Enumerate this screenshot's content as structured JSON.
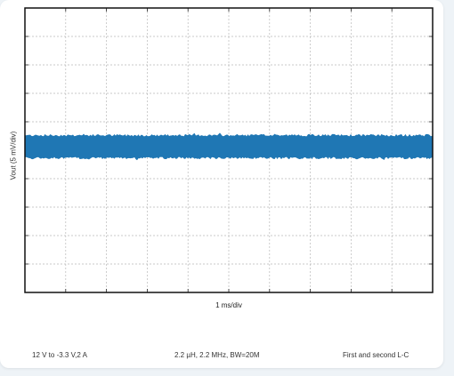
{
  "chart_data": {
    "type": "line",
    "title": "",
    "xlabel": "1 ms/div",
    "ylabel": "Vout (5 mV/div)",
    "x_divisions": 10,
    "y_divisions": 10,
    "xlim": [
      0,
      10
    ],
    "ylim": [
      -5,
      5
    ],
    "grid": true,
    "legend": "none",
    "series": [
      {
        "color": "#1f77b4",
        "mean": 0.12,
        "band": [
          -0.3,
          0.55
        ],
        "description_units": "divisions"
      }
    ]
  },
  "captions": {
    "left": "12 V to -3.3 V,2 A",
    "middle": "2.2 µH, 2.2 MHz, BW=20M",
    "right": "First and second L-C"
  }
}
